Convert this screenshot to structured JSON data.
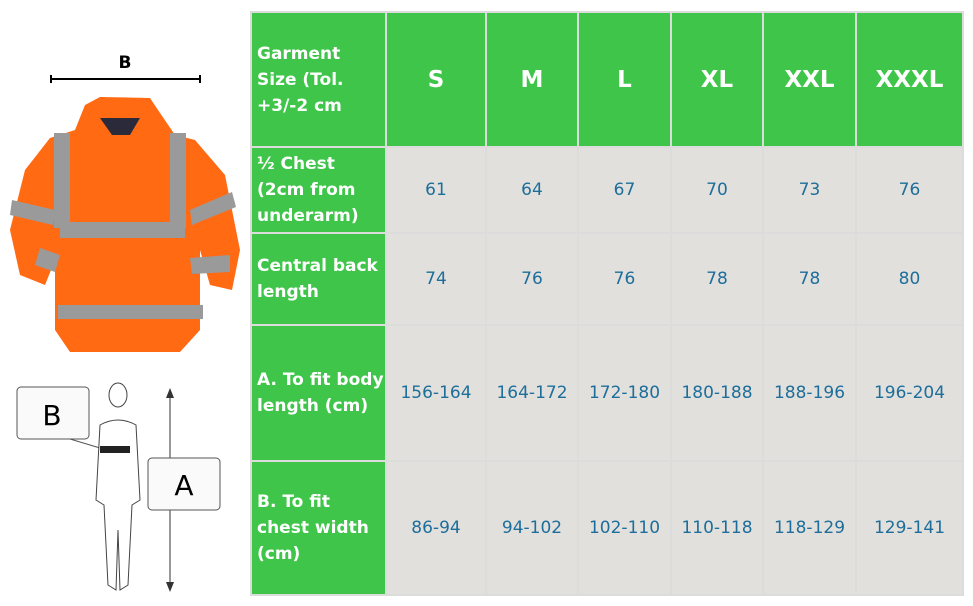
{
  "diagram": {
    "jacket_label": "B",
    "figure_label_b": "B",
    "figure_label_a": "A"
  },
  "colors": {
    "header_bg": "#3fc64a",
    "cell_bg": "#e1e0dd",
    "value_text": "#1d6e9a",
    "jacket": "#ff6a13"
  },
  "table": {
    "corner": "Garment Size (Tol. +3/-2 cm",
    "sizes": [
      "S",
      "M",
      "L",
      "XL",
      "XXL",
      "XXXL"
    ],
    "rows": [
      {
        "label": "½ Chest (2cm from underarm)",
        "values": [
          "61",
          "64",
          "67",
          "70",
          "73",
          "76"
        ]
      },
      {
        "label": "Central back length",
        "values": [
          "74",
          "76",
          "76",
          "78",
          "78",
          "80"
        ]
      },
      {
        "label": "A. To fit body length (cm)",
        "values": [
          "156-164",
          "164-172",
          "172-180",
          "180-188",
          "188-196",
          "196-204"
        ]
      },
      {
        "label": "B. To fit chest width (cm)",
        "values": [
          "86-94",
          "94-102",
          "102-110",
          "110-118",
          "118-129",
          "129-141"
        ]
      }
    ]
  }
}
